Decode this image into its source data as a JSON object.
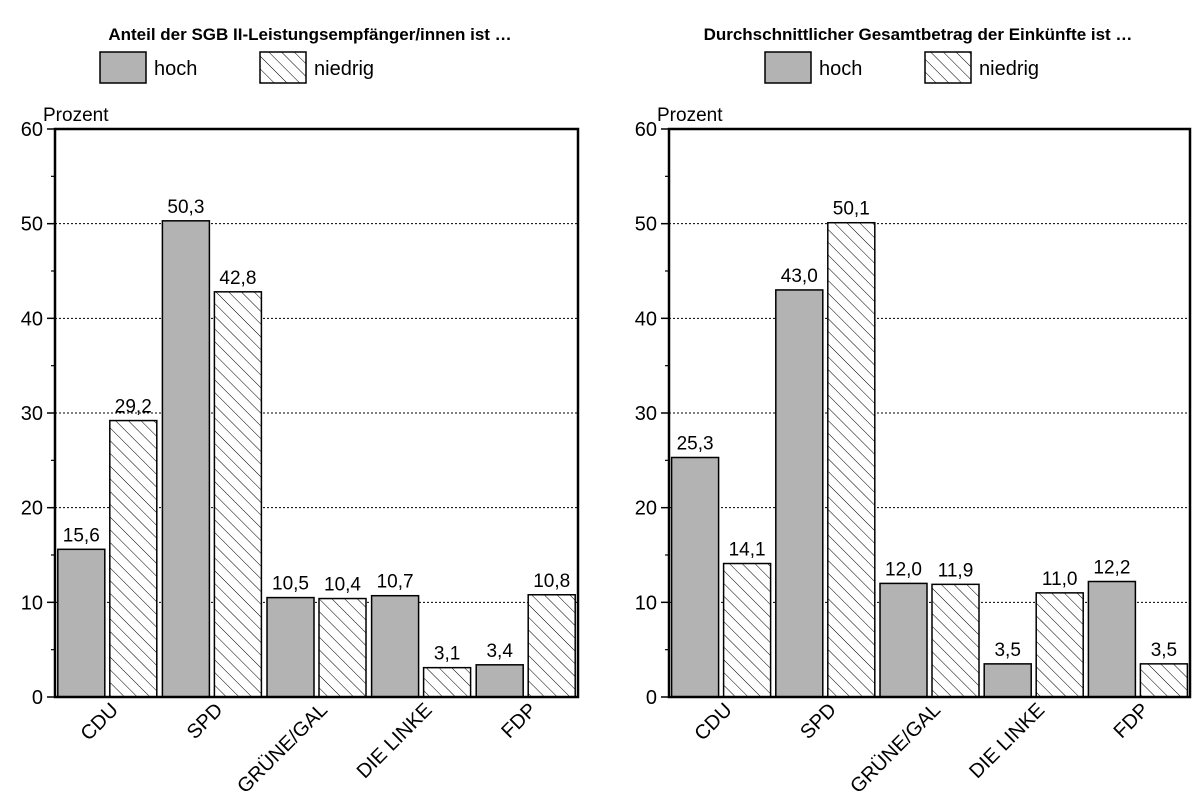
{
  "chart_data": [
    {
      "type": "bar",
      "title": "Anteil der SGB II-Leistungsempfänger/innen ist …",
      "ylabel": "Prozent",
      "xlabel": "",
      "categories": [
        "CDU",
        "SPD",
        "GRÜNE/GAL",
        "DIE LINKE",
        "FDP"
      ],
      "series": [
        {
          "name": "hoch",
          "values": [
            15.6,
            50.3,
            10.5,
            10.7,
            3.4
          ],
          "labels": [
            "15,6",
            "50,3",
            "10,5",
            "10,7",
            "3,4"
          ]
        },
        {
          "name": "niedrig",
          "values": [
            29.2,
            42.8,
            10.4,
            3.1,
            10.8
          ],
          "labels": [
            "29,2",
            "42,8",
            "10,4",
            "3,1",
            "10,8"
          ]
        }
      ],
      "ylim": [
        0,
        60
      ],
      "yticks": [
        "0",
        "10",
        "20",
        "30",
        "40",
        "50",
        "60"
      ],
      "grid": "dotted horizontal",
      "legend": "top"
    },
    {
      "type": "bar",
      "title": "Durchschnittlicher Gesamtbetrag der Einkünfte ist …",
      "ylabel": "Prozent",
      "xlabel": "",
      "categories": [
        "CDU",
        "SPD",
        "GRÜNE/GAL",
        "DIE LINKE",
        "FDP"
      ],
      "series": [
        {
          "name": "hoch",
          "values": [
            25.3,
            43.0,
            12.0,
            3.5,
            12.2
          ],
          "labels": [
            "25,3",
            "43,0",
            "12,0",
            "3,5",
            "12,2"
          ]
        },
        {
          "name": "niedrig",
          "values": [
            14.1,
            50.1,
            11.9,
            11.0,
            3.5
          ],
          "labels": [
            "14,1",
            "50,1",
            "11,9",
            "11,0",
            "3,5"
          ]
        }
      ],
      "ylim": [
        0,
        60
      ],
      "yticks": [
        "0",
        "10",
        "20",
        "30",
        "40",
        "50",
        "60"
      ],
      "grid": "dotted horizontal",
      "legend": "top"
    }
  ],
  "colors": {
    "hoch_fill": "#b3b3b3",
    "niedrig_fill": "#ffffff",
    "stroke": "#000000"
  }
}
